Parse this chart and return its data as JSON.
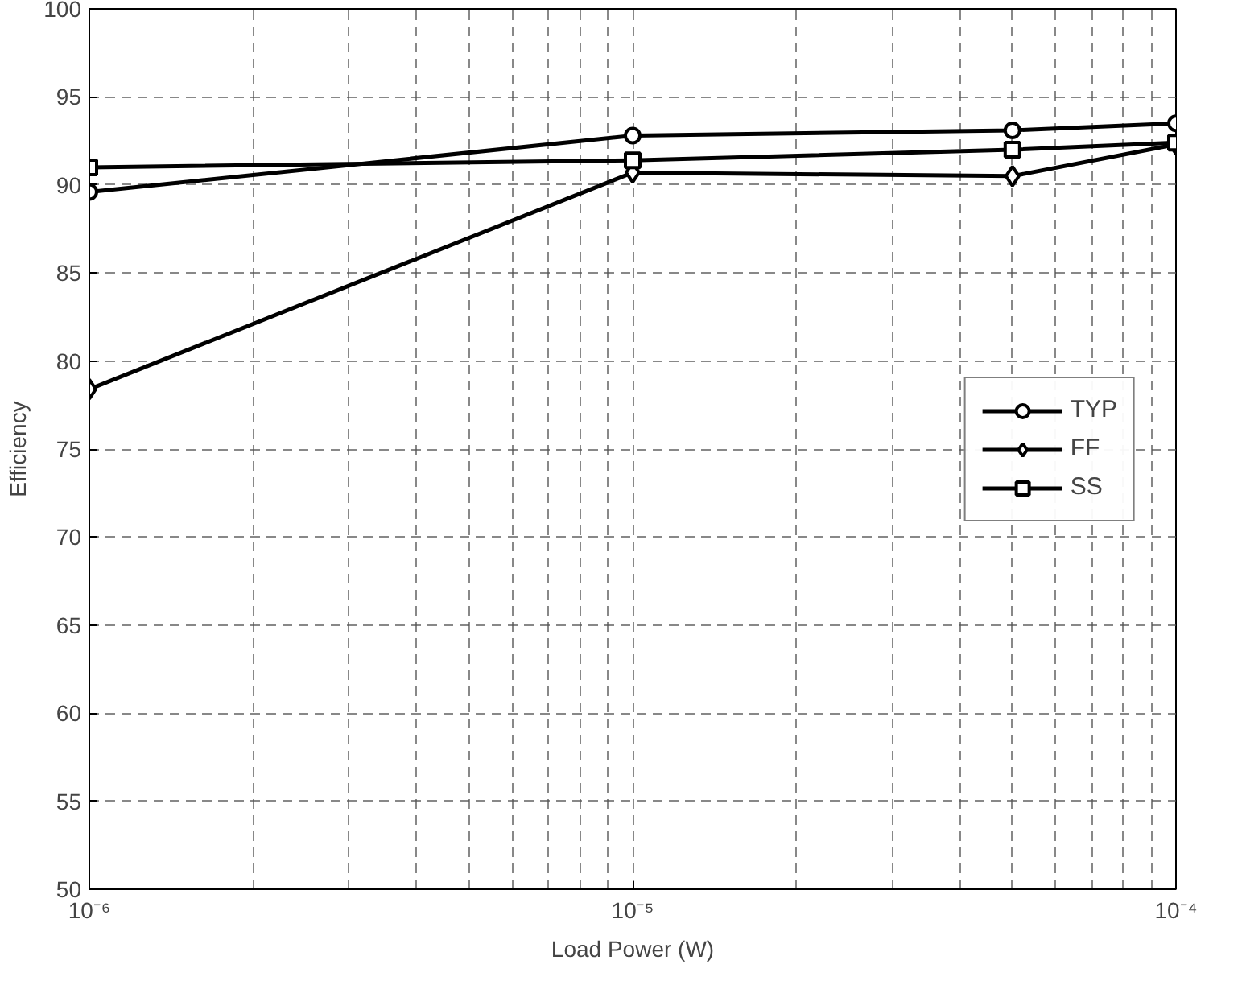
{
  "chart_data": {
    "type": "line",
    "xlabel": "Load Power (W)",
    "ylabel": "Efficiency",
    "x": [
      1e-06,
      1e-05,
      5e-05,
      0.0001
    ],
    "series": [
      {
        "name": "TYP",
        "color": "#000000",
        "marker": "circle",
        "values": [
          89.6,
          92.8,
          93.1,
          93.5
        ]
      },
      {
        "name": "FF",
        "color": "#000000",
        "marker": "diamond",
        "values": [
          78.4,
          90.7,
          90.5,
          92.3
        ]
      },
      {
        "name": "SS",
        "color": "#000000",
        "marker": "square",
        "values": [
          91.0,
          91.4,
          92.0,
          92.4
        ]
      }
    ],
    "log": "x",
    "xlim": [
      1e-06,
      0.0001
    ],
    "xticks": [
      {
        "value": 1e-06,
        "label": "10⁻⁶"
      },
      {
        "value": 1e-05,
        "label": "10⁻⁵"
      },
      {
        "value": 0.0001,
        "label": "10⁻⁴"
      }
    ],
    "ylim": [
      50,
      100
    ],
    "yticks": [
      50,
      55,
      60,
      65,
      70,
      75,
      80,
      85,
      90,
      95,
      100
    ],
    "grid": true,
    "legend": "right",
    "line_style": "solid"
  }
}
